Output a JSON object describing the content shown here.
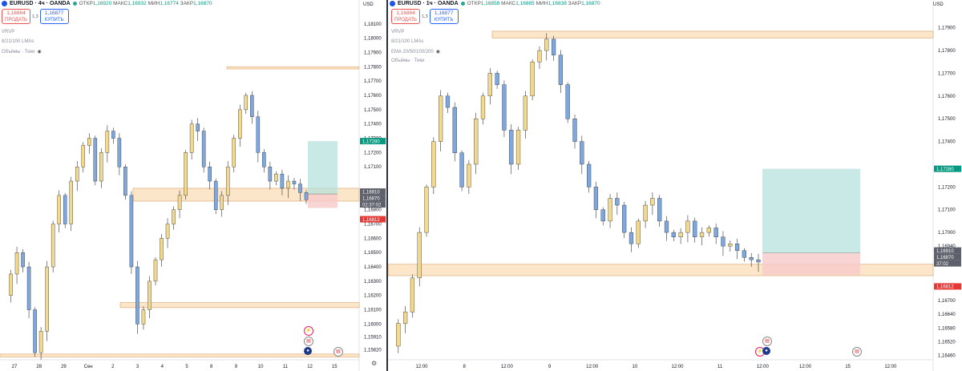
{
  "left": {
    "symbol": "EURUSD · 4ч · OANDA",
    "ohlc": {
      "o_label": "ОТКР",
      "o": "1,16920",
      "h_label": "МАКС",
      "h": "1,16932",
      "l_label": "МИН",
      "l": "1,16774",
      "c_label": "ЗАКР",
      "c": "1,16870"
    },
    "sell": {
      "price": "1,16864",
      "label": "ПРОДАТЬ"
    },
    "buy": {
      "price": "1,16877",
      "label": "КУПИТЬ"
    },
    "spread": "1,3",
    "indicators": [
      "VRVP",
      "8/21/100 LMAs",
      "Объёмы · Тики"
    ],
    "currency": "USD",
    "price_labels": [
      "1,18100",
      "1,18000",
      "1,17900",
      "1,17800",
      "1,17700",
      "1,17600",
      "1,17500",
      "1,17400",
      "1,17300",
      "1,17200",
      "1,17100",
      "1,16800",
      "1,16700",
      "1,16600",
      "1,16500",
      "1,16400",
      "1,16300",
      "1,16200",
      "1,16100",
      "1,16000",
      "1,15910",
      "1,15820"
    ],
    "tags": {
      "tp": "1,17280",
      "bid": "1,16910",
      "last": "1,16870",
      "timer": "02:37:02",
      "sl": "1,16812"
    },
    "time_labels": [
      "27",
      "28",
      "29",
      "Сен",
      "2",
      "3",
      "4",
      "5",
      "8",
      "9",
      "10",
      "11",
      "12",
      "15"
    ]
  },
  "right": {
    "symbol": "EURUSD · 1ч · OANDA",
    "ohlc": {
      "o_label": "ОТКР",
      "o": "1,16858",
      "h_label": "МАКС",
      "h": "1,16885",
      "l_label": "МИН",
      "l": "1,16838",
      "c_label": "ЗАКР",
      "c": "1,16870"
    },
    "sell": {
      "price": "1,16864",
      "label": "ПРОДАТЬ"
    },
    "buy": {
      "price": "1,16877",
      "label": "КУПИТЬ"
    },
    "spread": "1,3",
    "indicators": [
      "VRVP",
      "8/21/100 LMAs",
      "EMA 20/50/100/200",
      "Объёмы · Тики"
    ],
    "currency": "USD",
    "price_labels": [
      "1,17900",
      "1,17800",
      "1,17700",
      "1,17600",
      "1,17500",
      "1,17400",
      "1,17200",
      "1,17100",
      "1,17000",
      "1,16940",
      "1,16760",
      "1,16700",
      "1,16640",
      "1,16580",
      "1,16520",
      "1,16460"
    ],
    "tags": {
      "tp": "1,17280",
      "bid": "1,16910",
      "last": "1,16870",
      "timer": "37:02",
      "sl": "1,16812"
    },
    "time_labels": [
      "12:00",
      "8",
      "12:00",
      "9",
      "12:00",
      "10",
      "12:00",
      "11",
      "12:00",
      "12:00",
      "15",
      "12:00"
    ]
  },
  "chart_data": [
    {
      "type": "candlestick",
      "title": "EURUSD · 4ч · OANDA",
      "ylim": [
        1.1575,
        1.182
      ],
      "zones": [
        {
          "name": "resistance",
          "y": [
            1.17785,
            1.178
          ]
        },
        {
          "name": "support-mid",
          "y": [
            1.1686,
            1.1695
          ]
        },
        {
          "name": "support-low",
          "y": [
            1.16115,
            1.1615
          ]
        },
        {
          "name": "bottom",
          "y": [
            1.1577,
            1.1579
          ]
        }
      ],
      "position": {
        "entry": 1.1691,
        "take_profit": 1.1728,
        "stop_loss": 1.16812
      },
      "path": [
        1.162,
        1.1635,
        1.165,
        1.164,
        1.161,
        1.158,
        1.1595,
        1.164,
        1.167,
        1.169,
        1.167,
        1.17,
        1.171,
        1.1725,
        1.173,
        1.17,
        1.172,
        1.1735,
        1.173,
        1.171,
        1.169,
        1.164,
        1.16,
        1.161,
        1.163,
        1.1645,
        1.166,
        1.167,
        1.168,
        1.169,
        1.172,
        1.174,
        1.1735,
        1.171,
        1.17,
        1.168,
        1.169,
        1.171,
        1.173,
        1.175,
        1.176,
        1.1745,
        1.172,
        1.171,
        1.17,
        1.1705,
        1.1695,
        1.17,
        1.1698,
        1.1692,
        1.1687
      ],
      "currency": "USD"
    },
    {
      "type": "candlestick",
      "title": "EURUSD · 1ч · OANDA",
      "ylim": [
        1.1644,
        1.1798
      ],
      "zones": [
        {
          "name": "resistance",
          "y": [
            1.17855,
            1.17885
          ]
        },
        {
          "name": "support",
          "y": [
            1.1681,
            1.1686
          ]
        }
      ],
      "position": {
        "entry": 1.1691,
        "take_profit": 1.1728,
        "stop_loss": 1.16812
      },
      "path": [
        1.165,
        1.166,
        1.1665,
        1.168,
        1.17,
        1.172,
        1.174,
        1.176,
        1.1755,
        1.1735,
        1.172,
        1.173,
        1.175,
        1.176,
        1.177,
        1.1765,
        1.1745,
        1.173,
        1.1745,
        1.176,
        1.1775,
        1.178,
        1.1785,
        1.1778,
        1.1765,
        1.175,
        1.174,
        1.173,
        1.172,
        1.171,
        1.1705,
        1.1715,
        1.1712,
        1.17,
        1.1695,
        1.1705,
        1.1712,
        1.1715,
        1.1705,
        1.17,
        1.1698,
        1.17,
        1.1705,
        1.1698,
        1.17,
        1.1702,
        1.1698,
        1.1694,
        1.1695,
        1.1692,
        1.1689,
        1.1688,
        1.1687
      ],
      "currency": "USD"
    }
  ]
}
